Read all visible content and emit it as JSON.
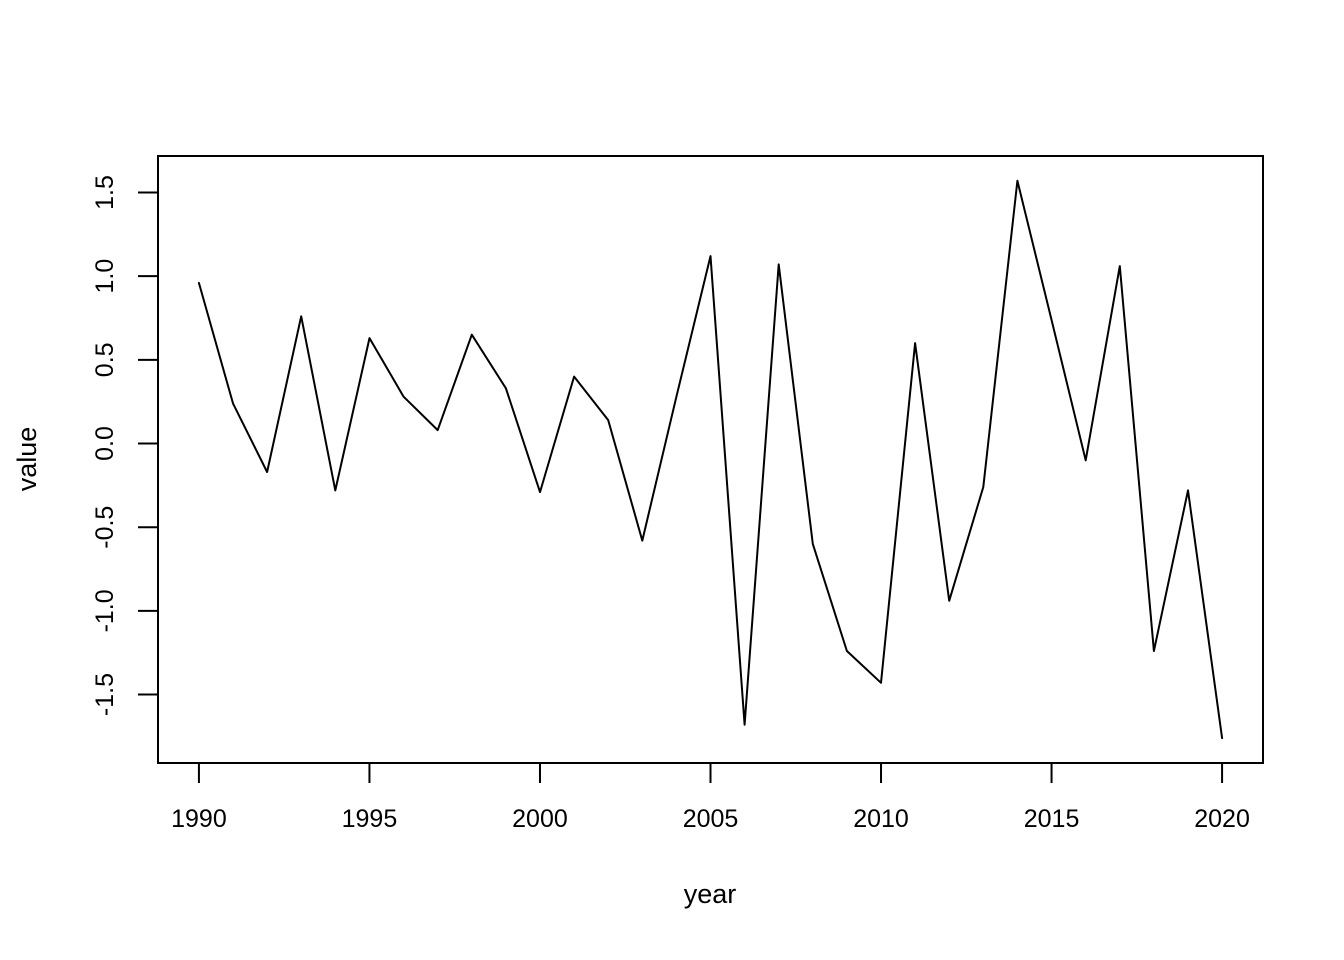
{
  "chart_data": {
    "type": "line",
    "title": "",
    "xlabel": "year",
    "ylabel": "value",
    "x": [
      1990,
      1991,
      1992,
      1993,
      1994,
      1995,
      1996,
      1997,
      1998,
      1999,
      2000,
      2001,
      2002,
      2003,
      2004,
      2005,
      2006,
      2007,
      2008,
      2009,
      2010,
      2011,
      2012,
      2013,
      2014,
      2015,
      2016,
      2017,
      2018,
      2019,
      2020
    ],
    "series": [
      {
        "name": "value",
        "values": [
          0.96,
          0.24,
          -0.17,
          0.76,
          -0.28,
          0.63,
          0.28,
          0.08,
          0.65,
          0.33,
          -0.29,
          0.4,
          0.14,
          -0.58,
          0.28,
          1.12,
          -1.68,
          1.07,
          -0.6,
          -1.24,
          -1.43,
          0.6,
          -0.94,
          -0.26,
          1.57,
          0.74,
          -0.1,
          1.06,
          -1.24,
          -0.28,
          -1.76
        ]
      }
    ],
    "xticks": [
      1990,
      1995,
      2000,
      2005,
      2010,
      2015,
      2020
    ],
    "xtick_labels": [
      "1990",
      "1995",
      "2000",
      "2005",
      "2010",
      "2015",
      "2020"
    ],
    "yticks": [
      -1.5,
      -1.0,
      -0.5,
      0.0,
      0.5,
      1.0,
      1.5
    ],
    "ytick_labels": [
      "-1.5",
      "-1.0",
      "-0.5",
      "0.0",
      "0.5",
      "1.0",
      "1.5"
    ],
    "xlim": [
      1988.8,
      2021.2
    ],
    "ylim": [
      -1.909,
      1.718
    ],
    "grid": false,
    "legend": null,
    "line_color": "#000000",
    "background": "#ffffff"
  }
}
